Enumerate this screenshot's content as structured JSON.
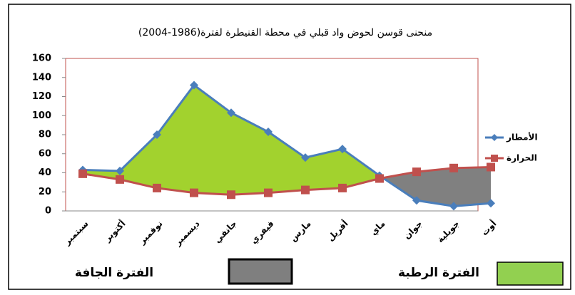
{
  "chart_data": {
    "type": "line",
    "title": "منحنى قوسن لحوض واد قبلي في محطة القنيطرة لفترة(1986-2004)",
    "categories": [
      "سبتمبر",
      "أكتوبر",
      "نوفمبر",
      "ديسمبر",
      "جانفي",
      "فيفري",
      "مارس",
      "أفريل",
      "ماي",
      "جوان",
      "جويلية",
      "أوت"
    ],
    "series": [
      {
        "name": "الأمطار",
        "color": "#4a7ebb",
        "marker": "diamond",
        "values": [
          43,
          42,
          80,
          132,
          103,
          83,
          56,
          65,
          37,
          11,
          5,
          8
        ]
      },
      {
        "name": "الحرارة",
        "color": "#c0504d",
        "marker": "square",
        "values": [
          39,
          33,
          24,
          19,
          17,
          19,
          22,
          24,
          34,
          41,
          45,
          46
        ]
      }
    ],
    "ylim": [
      0,
      160
    ],
    "yticks": [
      0,
      20,
      40,
      60,
      80,
      100,
      120,
      140,
      160
    ],
    "legend": "right",
    "fill_between": {
      "above_color": "#a2d22e",
      "below_color": "#808080"
    },
    "period_legend": [
      {
        "label": "الفترة الرطبة",
        "color": "#92d050"
      },
      {
        "label": "الفترة الجافة",
        "color": "#7f7f7f"
      }
    ]
  }
}
